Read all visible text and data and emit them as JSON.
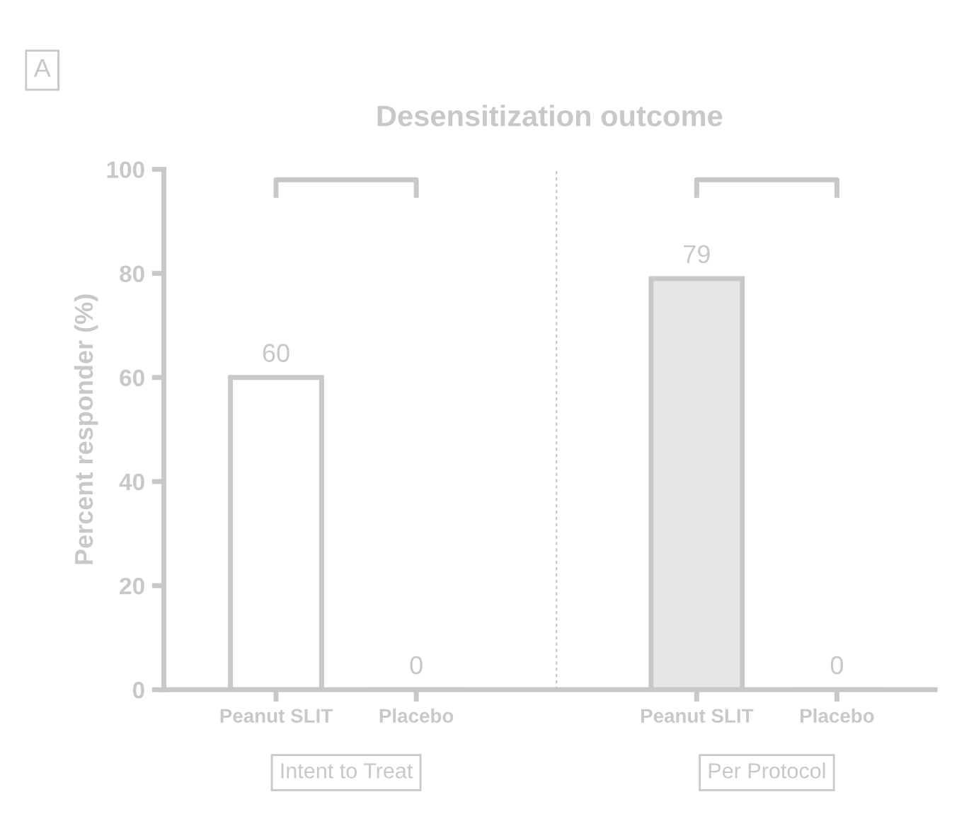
{
  "chart_data": {
    "type": "bar",
    "title": "Desensitization outcome",
    "ylabel": "Percent responder (%)",
    "categories": [
      "Peanut SLIT",
      "Placebo",
      null,
      "Peanut SLIT",
      "Placebo"
    ],
    "values": [
      60,
      0,
      null,
      79,
      0
    ],
    "colors": [
      "#ffffff",
      "#ffffff",
      "#ffffff",
      "#e6e6e6",
      "#ffffff"
    ],
    "ylim": [
      0,
      100
    ],
    "yticks": [
      0,
      20,
      40,
      60,
      80,
      100
    ],
    "data_labels": true,
    "annotations": [
      "A",
      "Intent to Treat",
      "Per Protocol"
    ]
  }
}
